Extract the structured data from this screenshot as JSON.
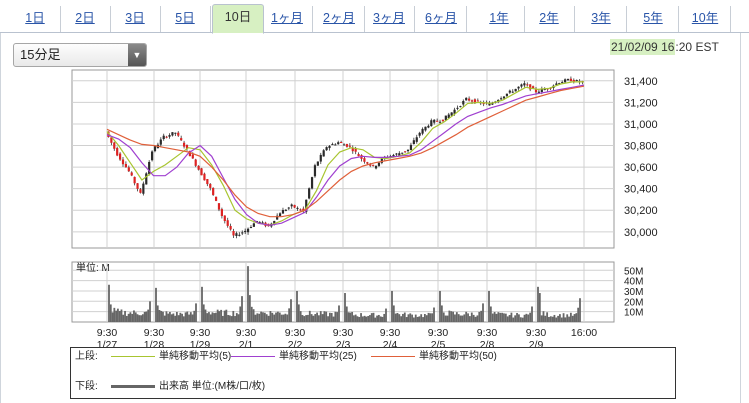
{
  "tabs": [
    {
      "label": "1日"
    },
    {
      "label": "2日"
    },
    {
      "label": "3日"
    },
    {
      "label": "5日"
    },
    {
      "label": "10日",
      "active": true
    },
    {
      "label": "1ヶ月"
    },
    {
      "label": "2ヶ月"
    },
    {
      "label": "3ヶ月"
    },
    {
      "label": "6ヶ月"
    },
    {
      "label": "1年"
    },
    {
      "label": "2年"
    },
    {
      "label": "3年"
    },
    {
      "label": "5年"
    },
    {
      "label": "10年"
    }
  ],
  "interval_select": {
    "value": "15分足"
  },
  "timestamp": {
    "date": "21/02/09",
    "hour": "16",
    "rest": ":20 EST"
  },
  "chart_data": {
    "type": "line",
    "price_axis": {
      "ticks": [
        "31,400",
        "31,200",
        "31,000",
        "30,800",
        "30,600",
        "30,400",
        "30,200",
        "30,000"
      ],
      "values": [
        31400,
        31200,
        31000,
        30800,
        30600,
        30400,
        30200,
        30000
      ],
      "ylim": [
        29850,
        31500
      ]
    },
    "volume_axis": {
      "label": "単位: M",
      "ticks": [
        "50M",
        "40M",
        "30M",
        "20M",
        "10M"
      ],
      "values": [
        50,
        40,
        30,
        20,
        10
      ],
      "ylim": [
        0,
        58
      ]
    },
    "x_ticks": [
      {
        "time": "9:30",
        "date": "1/27"
      },
      {
        "time": "9:30",
        "date": "1/28"
      },
      {
        "time": "9:30",
        "date": "1/29"
      },
      {
        "time": "9:30",
        "date": "2/1"
      },
      {
        "time": "9:30",
        "date": "2/2"
      },
      {
        "time": "9:30",
        "date": "2/3"
      },
      {
        "time": "9:30",
        "date": "2/4"
      },
      {
        "time": "9:30",
        "date": "2/5"
      },
      {
        "time": "9:30",
        "date": "2/8"
      },
      {
        "time": "9:30",
        "date": "2/9"
      },
      {
        "time": "16:00",
        "date": ""
      }
    ],
    "price_path": [
      30930,
      30720,
      30560,
      30350,
      30750,
      30880,
      30920,
      30760,
      30580,
      30400,
      30150,
      29960,
      30010,
      30100,
      30050,
      30180,
      30240,
      30190,
      30610,
      30790,
      30830,
      30790,
      30680,
      30600,
      30690,
      30720,
      30760,
      30920,
      31020,
      31040,
      31130,
      31230,
      31200,
      31180,
      31250,
      31310,
      31370,
      31300,
      31330,
      31390,
      31410,
      31380
    ],
    "series": [
      {
        "name": "単純移動平均(5)",
        "color": "#a8c530",
        "values": [
          30930,
          30800,
          30640,
          30480,
          30560,
          30620,
          30700,
          30780,
          30760,
          30620,
          30430,
          30200,
          30120,
          30080,
          30060,
          30100,
          30160,
          30200,
          30380,
          30620,
          30740,
          30780,
          30760,
          30690,
          30680,
          30700,
          30730,
          30830,
          30960,
          31020,
          31100,
          31190,
          31200,
          31190,
          31220,
          31280,
          31340,
          31320,
          31330,
          31370,
          31390,
          31390
        ]
      },
      {
        "name": "単純移動平均(25)",
        "color": "#a040d0",
        "values": [
          30900,
          30860,
          30780,
          30640,
          30520,
          30520,
          30600,
          30730,
          30800,
          30700,
          30500,
          30300,
          30160,
          30080,
          30060,
          30080,
          30130,
          30180,
          30320,
          30480,
          30610,
          30680,
          30700,
          30690,
          30690,
          30700,
          30710,
          30760,
          30840,
          30920,
          31000,
          31070,
          31110,
          31150,
          31180,
          31220,
          31260,
          31280,
          31300,
          31320,
          31340,
          31360
        ]
      },
      {
        "name": "単純移動平均(50)",
        "color": "#e0603a",
        "values": [
          30950,
          30900,
          30850,
          30810,
          30800,
          30780,
          30760,
          30740,
          30700,
          30600,
          30480,
          30340,
          30230,
          30170,
          30140,
          30140,
          30160,
          30200,
          30280,
          30380,
          30480,
          30560,
          30610,
          30640,
          30660,
          30680,
          30700,
          30730,
          30780,
          30840,
          30900,
          30970,
          31020,
          31070,
          31120,
          31170,
          31220,
          31250,
          31280,
          31310,
          31330,
          31350
        ]
      }
    ],
    "volume": {
      "name": "出来高",
      "unit": "単位:(M株/口/枚)",
      "color": "#666666",
      "days": [
        {
          "peak": 36,
          "second": 17,
          "base": 8,
          "tail": 20
        },
        {
          "peak": 33,
          "second": 16,
          "base": 7,
          "tail": 18
        },
        {
          "peak": 34,
          "second": 17,
          "base": 8,
          "tail": 25
        },
        {
          "peak": 54,
          "second": 26,
          "base": 8,
          "tail": 22
        },
        {
          "peak": 30,
          "second": 17,
          "base": 7,
          "tail": 16
        },
        {
          "peak": 28,
          "second": 15,
          "base": 6,
          "tail": 13
        },
        {
          "peak": 30,
          "second": 16,
          "base": 6,
          "tail": 14
        },
        {
          "peak": 30,
          "second": 16,
          "base": 7,
          "tail": 18
        },
        {
          "peak": 30,
          "second": 15,
          "base": 6,
          "tail": 15
        },
        {
          "peak": 34,
          "second": 28,
          "base": 6,
          "tail": 23
        }
      ]
    }
  },
  "legend": {
    "upper_label": "上段:",
    "lower_label": "下段:",
    "items": [
      {
        "label": "単純移動平均(5)",
        "color": "#a8c530"
      },
      {
        "label": "単純移動平均(25)",
        "color": "#a040d0"
      },
      {
        "label": "単純移動平均(50)",
        "color": "#e0603a"
      }
    ],
    "volume_label": "出来高 単位:(M株/口/枚)",
    "volume_color": "#666666"
  }
}
